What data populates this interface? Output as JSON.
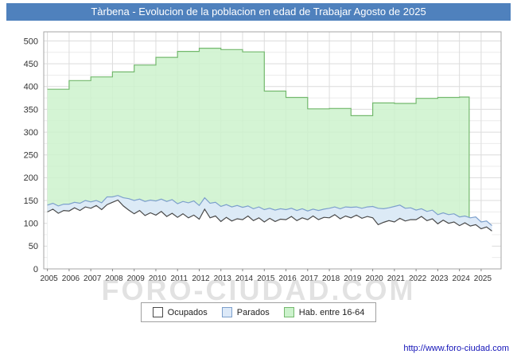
{
  "title": "Tàrbena - Evolucion de la poblacion en edad de Trabajar Agosto de 2025",
  "watermark": "FORO-CIUDAD.COM",
  "footer_url": "http://www.foro-ciudad.com",
  "colors": {
    "titlebar": "#4f81bd",
    "grid_major": "#dcdcdc",
    "grid_minor": "#ececec",
    "plot_border": "#a6a6a6",
    "axis_text": "#333333"
  },
  "legend": {
    "items": [
      {
        "label": "Ocupados",
        "fill": "#ffffff",
        "stroke": "#4a4a4a"
      },
      {
        "label": "Parados",
        "fill": "#dce9f8",
        "stroke": "#7da0cc"
      },
      {
        "label": "Hab. entre 16-64",
        "fill": "#ccf2cc",
        "stroke": "#74b96e"
      }
    ]
  },
  "chart_data": {
    "type": "area",
    "title": "Tàrbena - Evolucion de la poblacion en edad de Trabajar Agosto de 2025",
    "xlabel": "",
    "ylabel": "",
    "xlim": [
      2004.83,
      2025.92
    ],
    "ylim": [
      0,
      520
    ],
    "x_ticks": [
      2005,
      2006,
      2007,
      2008,
      2009,
      2010,
      2011,
      2012,
      2013,
      2014,
      2015,
      2016,
      2017,
      2018,
      2019,
      2020,
      2021,
      2022,
      2023,
      2024,
      2025
    ],
    "y_ticks": [
      0,
      50,
      100,
      150,
      200,
      250,
      300,
      350,
      400,
      450,
      500
    ],
    "grid": true,
    "legend_position": "bottom",
    "series": [
      {
        "id": "hab",
        "name": "Hab. entre 16-64",
        "mode": "yearly-steps",
        "years": [
          2005,
          2006,
          2007,
          2008,
          2009,
          2010,
          2011,
          2012,
          2013,
          2014,
          2015,
          2016,
          2017,
          2018,
          2019,
          2020,
          2021,
          2022,
          2023,
          2024
        ],
        "values": [
          394,
          413,
          421,
          432,
          447,
          464,
          477,
          484,
          481,
          476,
          390,
          376,
          351,
          352,
          336,
          364,
          363,
          374,
          376,
          377
        ],
        "x_end": 2024.45,
        "fill": "#ccf2cc",
        "stroke": "#74b96e"
      },
      {
        "id": "ocupados",
        "name": "Ocupados",
        "mode": "quarterly",
        "x_start": 2005.0,
        "x_step": 0.25,
        "values": [
          125,
          131,
          122,
          128,
          127,
          134,
          128,
          136,
          133,
          139,
          130,
          141,
          146,
          151,
          138,
          129,
          121,
          128,
          117,
          123,
          118,
          126,
          115,
          122,
          113,
          121,
          112,
          118,
          109,
          131,
          112,
          116,
          104,
          113,
          105,
          110,
          108,
          116,
          106,
          112,
          103,
          111,
          104,
          109,
          108,
          115,
          106,
          112,
          108,
          116,
          108,
          113,
          112,
          119,
          110,
          116,
          112,
          118,
          111,
          115,
          112,
          97,
          102,
          106,
          103,
          111,
          105,
          108,
          108,
          115,
          106,
          110,
          99,
          107,
          100,
          103,
          95,
          101,
          94,
          97,
          88,
          92,
          83
        ],
        "fill": "#ffffff",
        "stroke": "#4a4a4a"
      },
      {
        "id": "parados",
        "name": "Parados",
        "mode": "quarterly",
        "stack_on": "ocupados",
        "x_start": 2005.0,
        "x_step": 0.25,
        "values": [
          15,
          13,
          16,
          14,
          15,
          12,
          16,
          14,
          14,
          11,
          15,
          17,
          12,
          10,
          18,
          25,
          29,
          25,
          31,
          28,
          31,
          27,
          33,
          30,
          30,
          27,
          33,
          31,
          30,
          25,
          32,
          30,
          33,
          28,
          31,
          29,
          27,
          22,
          26,
          24,
          27,
          22,
          25,
          23,
          22,
          18,
          22,
          20,
          19,
          15,
          20,
          18,
          21,
          17,
          22,
          20,
          23,
          18,
          22,
          21,
          25,
          36,
          30,
          28,
          34,
          29,
          28,
          26,
          21,
          17,
          20,
          19,
          20,
          16,
          19,
          18,
          19,
          15,
          18,
          17,
          15,
          13,
          12
        ],
        "fill": "#dce9f8",
        "stroke": "#7da0cc"
      }
    ]
  }
}
